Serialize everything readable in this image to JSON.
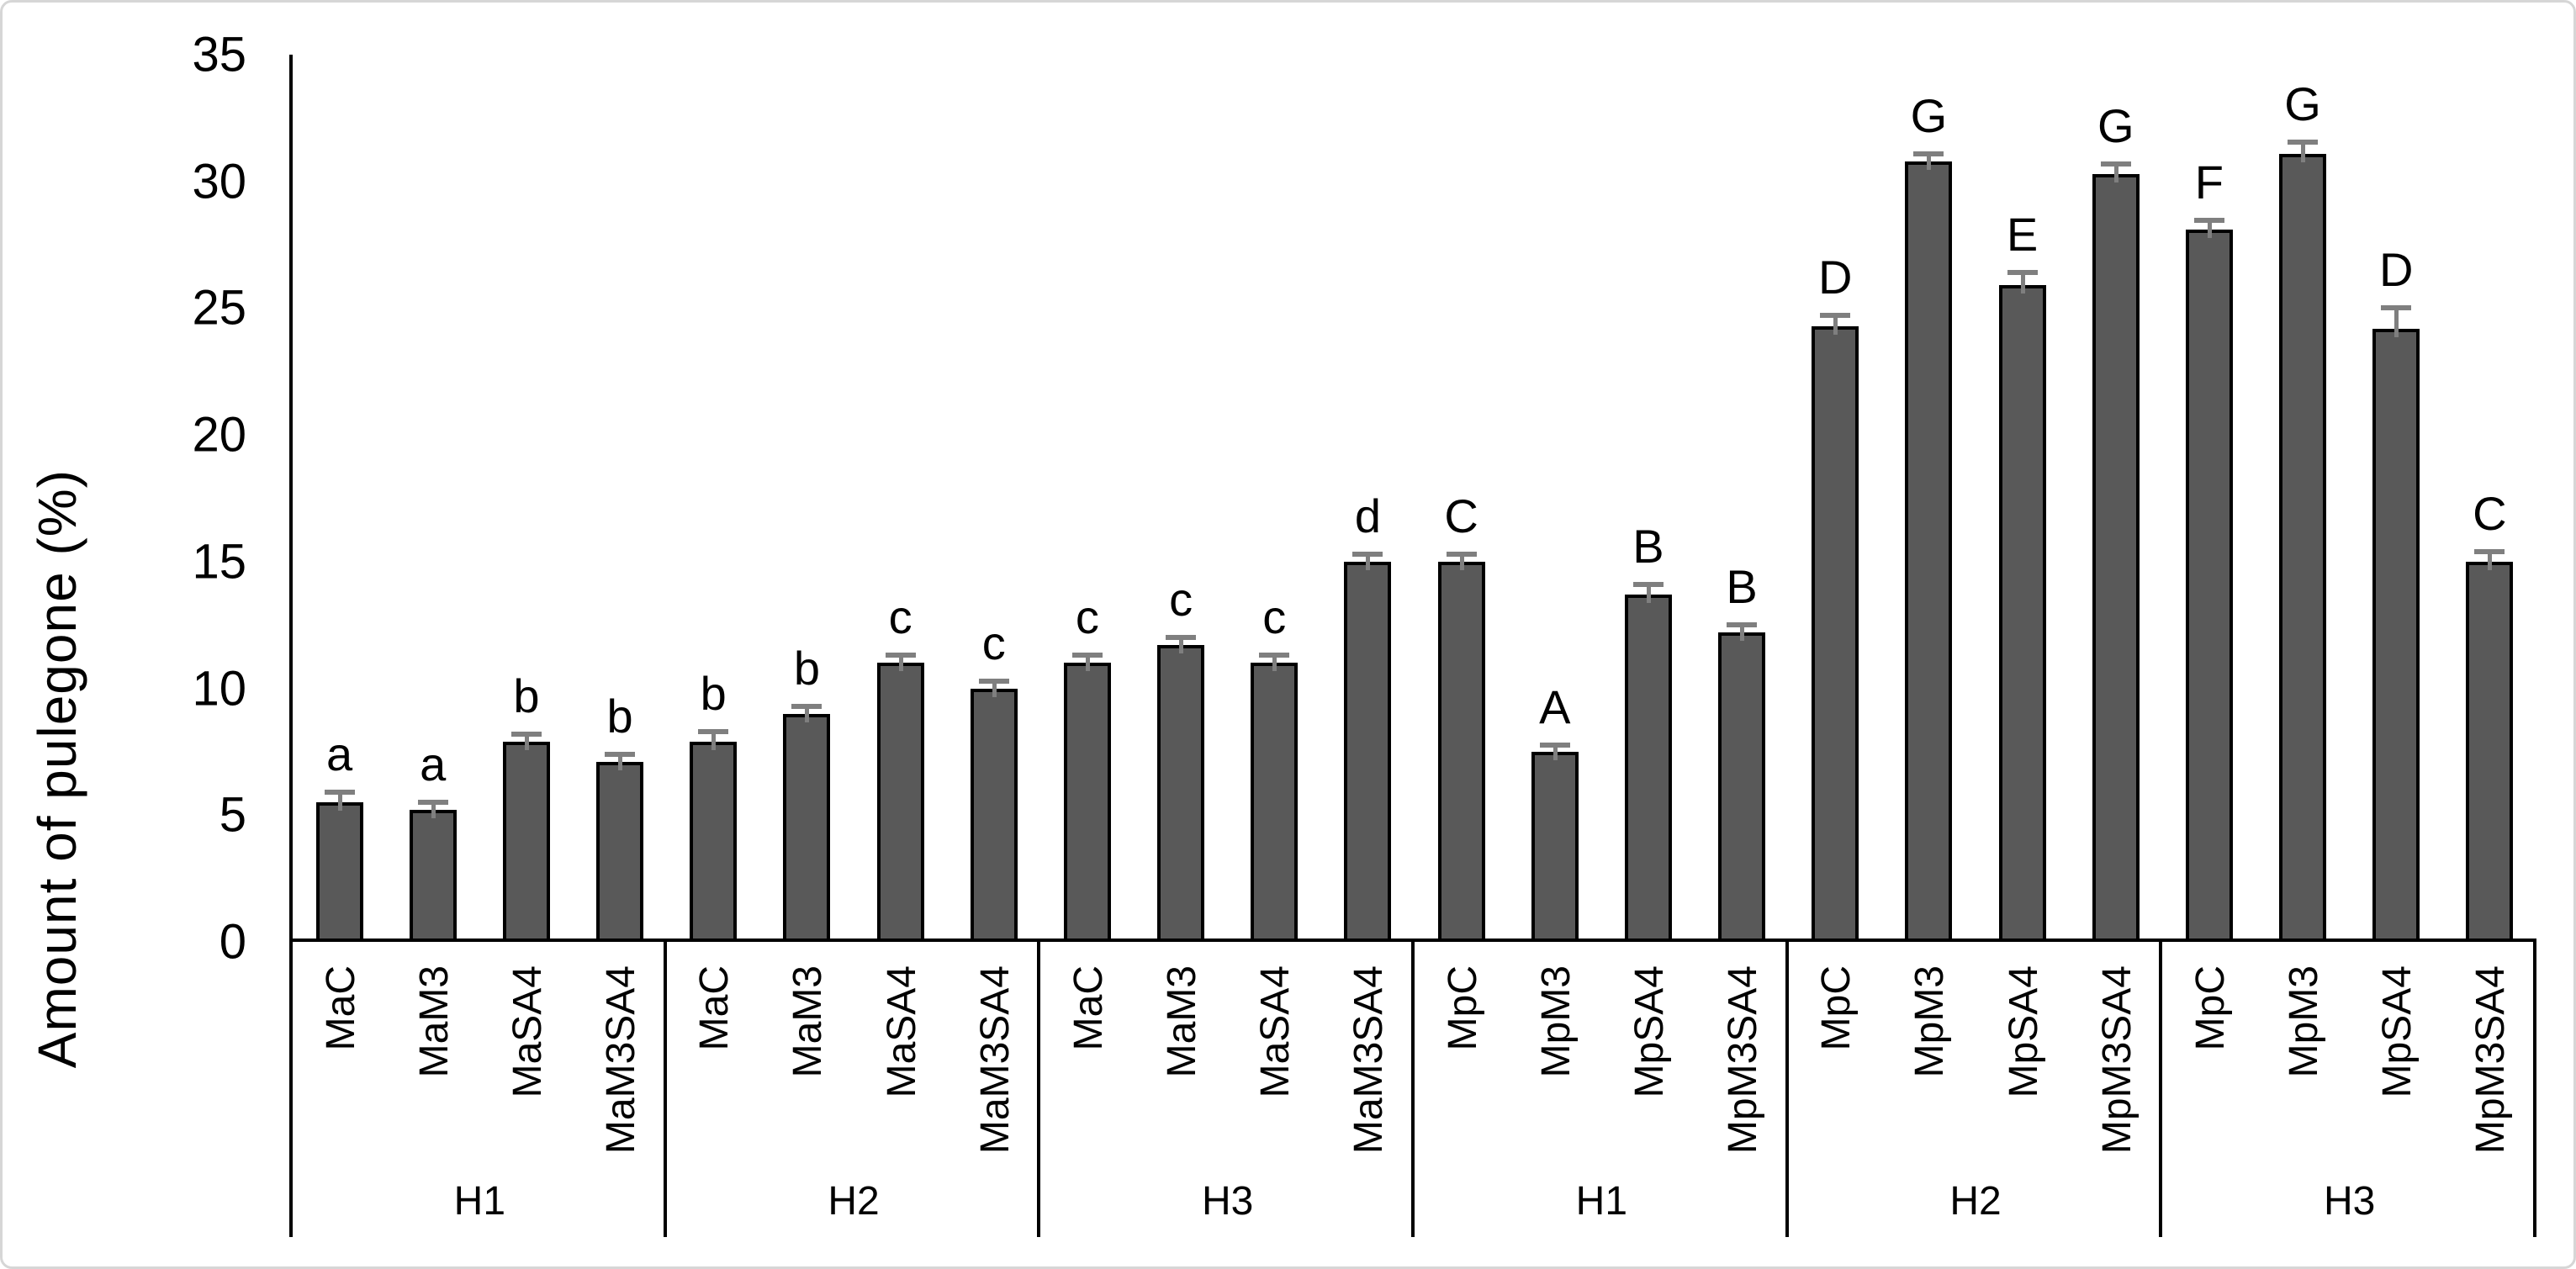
{
  "chart_data": {
    "type": "bar",
    "ylabel": "Amount of pulegone (%)",
    "ylim": [
      0,
      35
    ],
    "yticks": [
      0,
      5,
      10,
      15,
      20,
      25,
      30,
      35
    ],
    "grid": false,
    "legend_position": "none",
    "bar_color": "#595959",
    "bar_border_color": "#000000",
    "error_bar_color": "#7f7f7f",
    "groups": [
      {
        "label": "H1",
        "bars": [
          {
            "category": "MaC",
            "value": 5.5,
            "error": 0.4,
            "letter": "a"
          },
          {
            "category": "MaM3",
            "value": 5.2,
            "error": 0.3,
            "letter": "a"
          },
          {
            "category": "MaSA4",
            "value": 7.9,
            "error": 0.3,
            "letter": "b"
          },
          {
            "category": "MaM3SA4",
            "value": 7.1,
            "error": 0.3,
            "letter": "b"
          }
        ]
      },
      {
        "label": "H2",
        "bars": [
          {
            "category": "MaC",
            "value": 7.9,
            "error": 0.4,
            "letter": "b"
          },
          {
            "category": "MaM3",
            "value": 9.0,
            "error": 0.3,
            "letter": "b"
          },
          {
            "category": "MaSA4",
            "value": 11.0,
            "error": 0.3,
            "letter": "c"
          },
          {
            "category": "MaM3SA4",
            "value": 10.0,
            "error": 0.3,
            "letter": "c"
          }
        ]
      },
      {
        "label": "H3",
        "bars": [
          {
            "category": "MaC",
            "value": 11.0,
            "error": 0.3,
            "letter": "c"
          },
          {
            "category": "MaM3",
            "value": 11.7,
            "error": 0.3,
            "letter": "c"
          },
          {
            "category": "MaSA4",
            "value": 11.0,
            "error": 0.3,
            "letter": "c"
          },
          {
            "category": "MaM3SA4",
            "value": 15.0,
            "error": 0.3,
            "letter": "d"
          }
        ]
      },
      {
        "label": "H1",
        "bars": [
          {
            "category": "MpC",
            "value": 15.0,
            "error": 0.3,
            "letter": "C"
          },
          {
            "category": "MpM3",
            "value": 7.5,
            "error": 0.25,
            "letter": "A"
          },
          {
            "category": "MpSA4",
            "value": 13.7,
            "error": 0.4,
            "letter": "B"
          },
          {
            "category": "MpM3SA4",
            "value": 12.2,
            "error": 0.3,
            "letter": "B"
          }
        ]
      },
      {
        "label": "H2",
        "bars": [
          {
            "category": "MpC",
            "value": 24.3,
            "error": 0.4,
            "letter": "D"
          },
          {
            "category": "MpM3",
            "value": 30.8,
            "error": 0.3,
            "letter": "G"
          },
          {
            "category": "MpSA4",
            "value": 25.9,
            "error": 0.5,
            "letter": "E"
          },
          {
            "category": "MpM3SA4",
            "value": 30.3,
            "error": 0.4,
            "letter": "G"
          }
        ]
      },
      {
        "label": "H3",
        "bars": [
          {
            "category": "MpC",
            "value": 28.1,
            "error": 0.35,
            "letter": "F"
          },
          {
            "category": "MpM3",
            "value": 31.1,
            "error": 0.45,
            "letter": "G"
          },
          {
            "category": "MpSA4",
            "value": 24.2,
            "error": 0.8,
            "letter": "D"
          },
          {
            "category": "MpM3SA4",
            "value": 15.0,
            "error": 0.4,
            "letter": "C"
          }
        ]
      }
    ]
  }
}
